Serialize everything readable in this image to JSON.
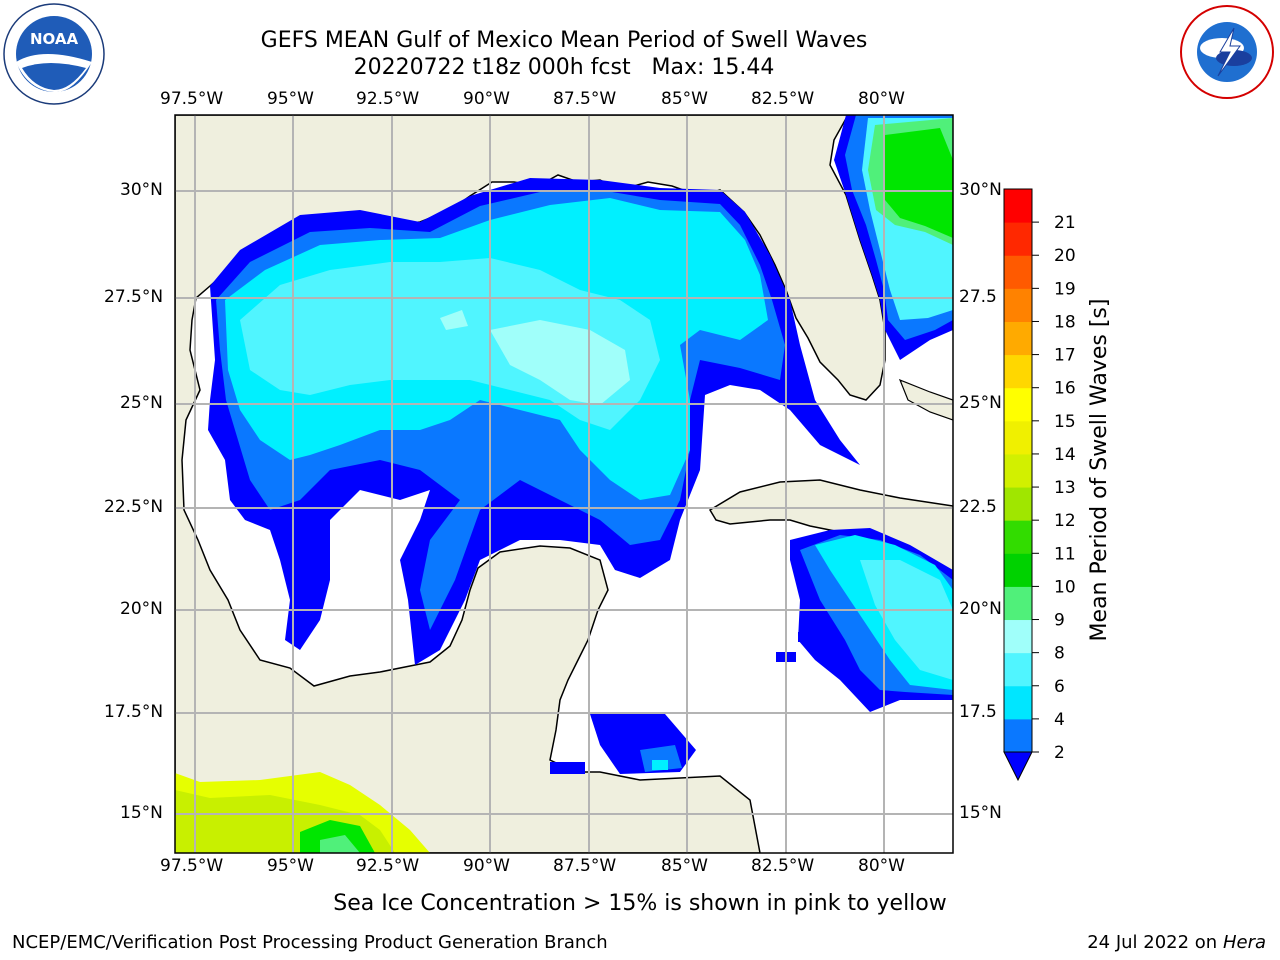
{
  "header": {
    "title_line1": "GEFS MEAN Gulf of Mexico Mean Period of Swell Waves",
    "title_line2": "20220722 t18z 000h fcst   Max: 15.44"
  },
  "logos": {
    "left": {
      "name": "noaa-logo",
      "text": "NOAA",
      "ring_text": "NATIONAL OCEANIC AND ATMOSPHERIC ADMINISTRATION · U.S. DEPARTMENT OF COMMERCE"
    },
    "right": {
      "name": "nws-logo",
      "ring_text": "NATIONAL WEATHER SERVICE"
    }
  },
  "map": {
    "lon_labels": [
      "97.5°W",
      "95°W",
      "92.5°W",
      "90°W",
      "87.5°W",
      "85°W",
      "82.5°W",
      "80°W"
    ],
    "lat_labels": [
      "30°N",
      "27.5°N",
      "25°N",
      "22.5°N",
      "20°N",
      "17.5°N",
      "15°N"
    ],
    "lat_labels_right": [
      "30°N",
      "27.5",
      "25°N",
      "22.5",
      "20°N",
      "17.5",
      "15°N"
    ]
  },
  "colorbar": {
    "label": "Mean Period of Swell Waves [s]",
    "ticks": [
      "2",
      "4",
      "6",
      "8",
      "9",
      "10",
      "11",
      "12",
      "13",
      "14",
      "15",
      "16",
      "17",
      "18",
      "19",
      "20",
      "21"
    ],
    "colors": [
      "#0a78ff",
      "#00e6ff",
      "#50f5ff",
      "#a0fffa",
      "#50f07a",
      "#00d200",
      "#32dc00",
      "#a0e600",
      "#d2f000",
      "#f0f000",
      "#ffff00",
      "#ffd700",
      "#ffaa00",
      "#ff8200",
      "#ff5a00",
      "#ff2800",
      "#ff0000"
    ],
    "extend_color": "#0000ff"
  },
  "colors": {
    "land": "#efefde",
    "ocean_empty": "#ffffff",
    "swell_2": "#0000ff",
    "swell_4": "#0a78ff",
    "swell_6": "#00f0ff",
    "swell_8": "#50f5ff",
    "swell_9": "#a0fffa",
    "swell_10": "#50f07a",
    "swell_11": "#00e600",
    "swell_13": "#c8f000",
    "swell_14": "#e6ff00"
  },
  "footer": {
    "note": "Sea Ice Concentration > 15% is shown in pink to yellow",
    "credit": "NCEP/EMC/Verification Post Processing Product Generation Branch",
    "date": "24 Jul 2022 on ",
    "machine": "Hera"
  }
}
